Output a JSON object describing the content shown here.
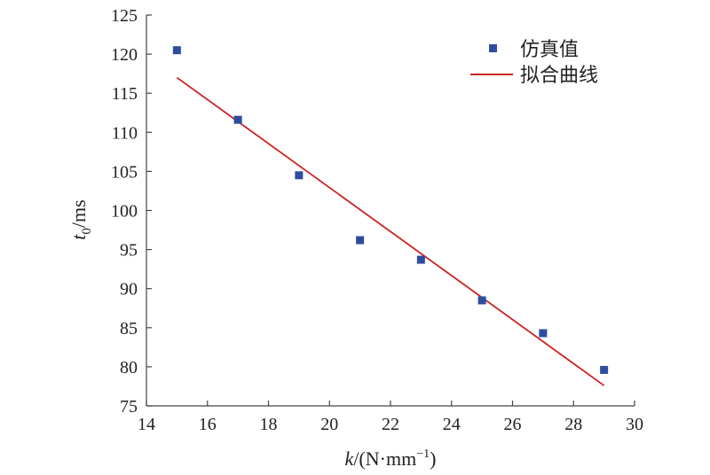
{
  "chart_data": {
    "type": "scatter",
    "xlabel": {
      "var": "k",
      "unit_prefix": "/(N·mm",
      "sup": "−1",
      "unit_suffix": ")"
    },
    "ylabel": {
      "var": "t",
      "sub": "0",
      "unit": "/ms"
    },
    "xlim": [
      14,
      30
    ],
    "ylim": [
      75,
      125
    ],
    "x_ticks": [
      "14",
      "16",
      "18",
      "20",
      "22",
      "24",
      "26",
      "28",
      "30"
    ],
    "y_ticks": [
      "75",
      "80",
      "85",
      "90",
      "95",
      "100",
      "105",
      "110",
      "115",
      "120",
      "125"
    ],
    "grid": false,
    "legend_position": "top-right",
    "series": [
      {
        "name": "仿真值",
        "kind": "points",
        "color": "#2e4d9e",
        "x": [
          15,
          17,
          19,
          21,
          23,
          25,
          27,
          29
        ],
        "y": [
          120.5,
          111.6,
          104.5,
          96.2,
          93.7,
          88.5,
          84.3,
          79.6
        ]
      },
      {
        "name": "拟合曲线",
        "kind": "line",
        "color": "#cc2222",
        "x": [
          15,
          29
        ],
        "y": [
          117.0,
          77.6
        ]
      }
    ]
  }
}
